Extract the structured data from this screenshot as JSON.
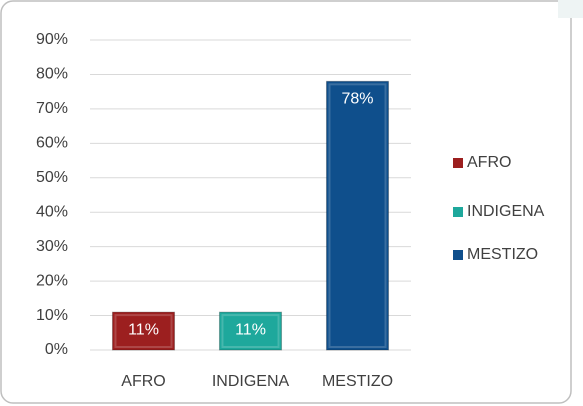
{
  "chart_data": {
    "type": "bar",
    "categories": [
      "AFRO",
      "INDIGENA",
      "MESTIZO"
    ],
    "values": [
      11,
      11,
      78
    ],
    "value_labels": [
      "11%",
      "11%",
      "78%"
    ],
    "colors": [
      "#9c1f1f",
      "#1ea89c",
      "#0f4f8c"
    ],
    "ylim": [
      0,
      90
    ],
    "yticks": [
      {
        "value": 0,
        "label": "0%"
      },
      {
        "value": 10,
        "label": "10%"
      },
      {
        "value": 20,
        "label": "20%"
      },
      {
        "value": 30,
        "label": "30%"
      },
      {
        "value": 40,
        "label": "40%"
      },
      {
        "value": 50,
        "label": "50%"
      },
      {
        "value": 60,
        "label": "60%"
      },
      {
        "value": 70,
        "label": "70%"
      },
      {
        "value": 80,
        "label": "80%"
      },
      {
        "value": 90,
        "label": "90%"
      }
    ],
    "grid": true,
    "legend": "right"
  }
}
